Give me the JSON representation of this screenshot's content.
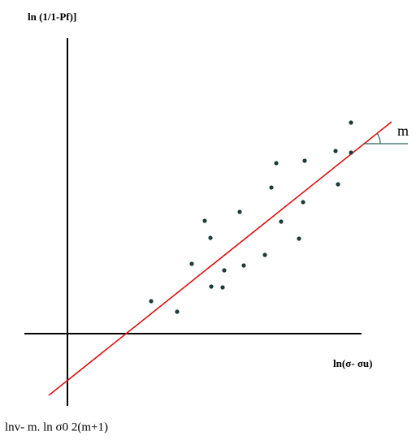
{
  "diagram": {
    "y_axis_label": "ln (1/1-Pf)]",
    "x_axis_label": "ln(σ- σu)",
    "intercept_label": "lnv- m. ln σ0 2(m+1)",
    "slope_label": "m"
  }
}
